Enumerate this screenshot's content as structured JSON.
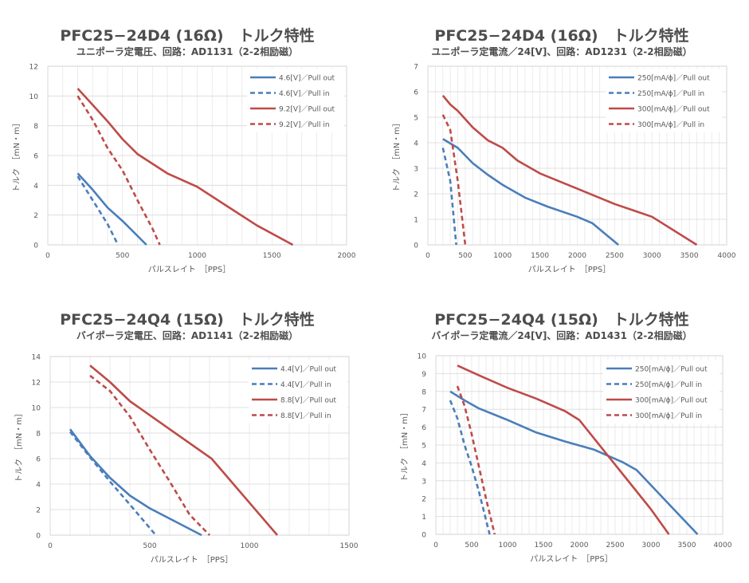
{
  "chart_data": [
    {
      "type": "line",
      "title": "PFC25−24D4 (16Ω)　トルク特性",
      "subtitle": "ユニポーラ定電圧、回路：AD1131（2-2相励磁）",
      "xlabel": "パルスレイト　［PPS］",
      "ylabel": "トルク　［mN・m］",
      "xlim": [
        0,
        2000
      ],
      "xstep": 500,
      "ylim": [
        0,
        12
      ],
      "ystep": 2,
      "xticks": [
        "0",
        "500",
        "1000",
        "1500",
        "2000"
      ],
      "yticks": [
        "0",
        "2",
        "4",
        "6",
        "8",
        "10",
        "12"
      ],
      "grid": true,
      "legend_position": "top-right",
      "series": [
        {
          "name": "4.6[V]／Pull out",
          "color": "#4a7ebb",
          "dashed": false,
          "x": [
            200,
            300,
            400,
            500,
            660
          ],
          "y": [
            4.8,
            3.7,
            2.5,
            1.6,
            0
          ]
        },
        {
          "name": "4.6[V]／Pull in",
          "color": "#4a7ebb",
          "dashed": true,
          "x": [
            200,
            300,
            400,
            470
          ],
          "y": [
            4.6,
            3.0,
            1.4,
            0
          ]
        },
        {
          "name": "9.2[V]／Pull out",
          "color": "#be4b48",
          "dashed": false,
          "x": [
            200,
            300,
            400,
            500,
            600,
            800,
            1000,
            1200,
            1400,
            1640
          ],
          "y": [
            10.5,
            9.4,
            8.3,
            7.1,
            6.1,
            4.8,
            3.9,
            2.6,
            1.3,
            0
          ]
        },
        {
          "name": "9.2[V]／Pull in",
          "color": "#be4b48",
          "dashed": true,
          "x": [
            200,
            300,
            400,
            500,
            600,
            700,
            750
          ],
          "y": [
            10.0,
            8.4,
            6.5,
            5.0,
            3.0,
            1.1,
            0
          ]
        }
      ]
    },
    {
      "type": "line",
      "title": "PFC25−24D4 (16Ω)　トルク特性",
      "subtitle": "ユニポーラ定電流／24[V]、回路：AD1231（2-2相励磁）",
      "xlabel": "パルスレイト　［PPS］",
      "ylabel": "トルク　［mN・m］",
      "xlim": [
        0,
        4000
      ],
      "xstep": 500,
      "ylim": [
        0,
        7
      ],
      "ystep": 1,
      "xticks": [
        "0",
        "500",
        "1000",
        "1500",
        "2000",
        "2500",
        "3000",
        "3500",
        "4000"
      ],
      "yticks": [
        "0",
        "1",
        "2",
        "3",
        "4",
        "5",
        "6",
        "7"
      ],
      "grid": true,
      "legend_position": "top-right",
      "series": [
        {
          "name": "250[mA/ϕ]／Pull out",
          "color": "#4a7ebb",
          "dashed": false,
          "x": [
            200,
            400,
            600,
            800,
            1000,
            1300,
            1600,
            2000,
            2200,
            2550
          ],
          "y": [
            4.15,
            3.8,
            3.2,
            2.75,
            2.35,
            1.85,
            1.5,
            1.1,
            0.85,
            0
          ]
        },
        {
          "name": "250[mA/ϕ]／Pull in",
          "color": "#4a7ebb",
          "dashed": true,
          "x": [
            200,
            300,
            380
          ],
          "y": [
            3.8,
            2.5,
            0
          ]
        },
        {
          "name": "300[mA/ϕ]／Pull out",
          "color": "#be4b48",
          "dashed": false,
          "x": [
            200,
            300,
            400,
            600,
            800,
            1000,
            1200,
            1500,
            2000,
            2500,
            2800,
            3000,
            3600
          ],
          "y": [
            5.85,
            5.5,
            5.25,
            4.6,
            4.1,
            3.8,
            3.3,
            2.8,
            2.2,
            1.6,
            1.3,
            1.1,
            0
          ]
        },
        {
          "name": "300[mA/ϕ]／Pull in",
          "color": "#be4b48",
          "dashed": true,
          "x": [
            200,
            300,
            400,
            500
          ],
          "y": [
            5.1,
            4.5,
            2.5,
            0
          ]
        }
      ]
    },
    {
      "type": "line",
      "title": "PFC25−24Q4 (15Ω)　トルク特性",
      "subtitle": "バイポーラ定電圧、回路：AD1141（2-2相励磁）",
      "xlabel": "パルスレイト　［PPS］",
      "ylabel": "トルク　［mN・m］",
      "xlim": [
        0,
        1500
      ],
      "xstep": 500,
      "ylim": [
        0,
        14
      ],
      "ystep": 2,
      "xticks": [
        "0",
        "500",
        "1000",
        "1500"
      ],
      "yticks": [
        "0",
        "2",
        "4",
        "6",
        "8",
        "10",
        "12",
        "14"
      ],
      "grid": true,
      "legend_position": "top-right",
      "series": [
        {
          "name": "4.4[V]／Pull out",
          "color": "#4a7ebb",
          "dashed": false,
          "x": [
            100,
            200,
            300,
            400,
            500,
            760
          ],
          "y": [
            8.3,
            6.2,
            4.5,
            3.1,
            2.1,
            0
          ]
        },
        {
          "name": "4.4[V]／Pull in",
          "color": "#4a7ebb",
          "dashed": true,
          "x": [
            100,
            200,
            300,
            400,
            530
          ],
          "y": [
            8.1,
            6.1,
            4.2,
            2.4,
            0
          ]
        },
        {
          "name": "8.8[V]／Pull out",
          "color": "#be4b48",
          "dashed": false,
          "x": [
            200,
            300,
            400,
            600,
            810,
            1140
          ],
          "y": [
            13.3,
            12.0,
            10.5,
            8.3,
            6.0,
            0
          ]
        },
        {
          "name": "8.8[V]／Pull in",
          "color": "#be4b48",
          "dashed": true,
          "x": [
            200,
            300,
            400,
            500,
            600,
            700,
            800
          ],
          "y": [
            12.5,
            11.3,
            9.3,
            6.7,
            4.2,
            1.6,
            0
          ]
        }
      ]
    },
    {
      "type": "line",
      "title": "PFC25−24Q4 (15Ω)　トルク特性",
      "subtitle": "バイポーラ定電流／24[V]、回路：AD1431（2-2相励磁）",
      "xlabel": "パルスレイト　［PPS］",
      "ylabel": "トルク　［mN・m］",
      "xlim": [
        0,
        4000
      ],
      "xstep": 500,
      "ylim": [
        0,
        10
      ],
      "ystep": 1,
      "xticks": [
        "0",
        "500",
        "1000",
        "1500",
        "2000",
        "2500",
        "3000",
        "3500",
        "4000"
      ],
      "yticks": [
        "0",
        "1",
        "2",
        "3",
        "4",
        "5",
        "6",
        "7",
        "8",
        "9",
        "10"
      ],
      "grid": true,
      "legend_position": "top-right",
      "series": [
        {
          "name": "250[mA/ϕ]／Pull out",
          "color": "#4a7ebb",
          "dashed": false,
          "x": [
            200,
            400,
            600,
            1000,
            1400,
            1800,
            2200,
            2600,
            2800,
            3200,
            3650
          ],
          "y": [
            8.0,
            7.5,
            7.05,
            6.4,
            5.7,
            5.2,
            4.75,
            4.05,
            3.6,
            1.9,
            0
          ]
        },
        {
          "name": "250[mA/ϕ]／Pull in",
          "color": "#4a7ebb",
          "dashed": true,
          "x": [
            200,
            300,
            400,
            500,
            600,
            750
          ],
          "y": [
            7.5,
            6.5,
            5.0,
            3.8,
            2.4,
            0
          ]
        },
        {
          "name": "300[mA/ϕ]／Pull out",
          "color": "#be4b48",
          "dashed": false,
          "x": [
            300,
            600,
            1000,
            1400,
            1800,
            2000,
            2300,
            2700,
            3000,
            3250
          ],
          "y": [
            9.45,
            8.9,
            8.2,
            7.6,
            6.9,
            6.4,
            4.9,
            2.9,
            1.4,
            0
          ]
        },
        {
          "name": "300[mA/ϕ]／Pull in",
          "color": "#be4b48",
          "dashed": true,
          "x": [
            300,
            400,
            500,
            600,
            700,
            820
          ],
          "y": [
            8.3,
            7.2,
            5.6,
            3.8,
            2.0,
            0
          ]
        }
      ]
    }
  ]
}
